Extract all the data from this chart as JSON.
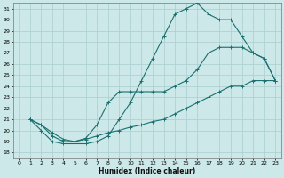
{
  "xlabel": "Humidex (Indice chaleur)",
  "bg_color": "#cce8e8",
  "line_color": "#1a7070",
  "grid_color": "#aacece",
  "xlim": [
    -0.5,
    23.5
  ],
  "ylim": [
    17.5,
    31.5
  ],
  "xticks": [
    0,
    1,
    2,
    3,
    4,
    5,
    6,
    7,
    8,
    9,
    10,
    11,
    12,
    13,
    14,
    15,
    16,
    17,
    18,
    19,
    20,
    21,
    22,
    23
  ],
  "yticks": [
    18,
    19,
    20,
    21,
    22,
    23,
    24,
    25,
    26,
    27,
    28,
    29,
    30,
    31
  ],
  "line1": {
    "x": [
      1,
      2,
      3,
      4,
      5,
      6,
      7,
      8,
      9,
      10,
      11,
      12,
      13,
      14,
      15,
      16,
      17,
      18,
      19,
      20,
      21,
      22,
      23
    ],
    "y": [
      21,
      20,
      19,
      18.8,
      18.8,
      18.8,
      19,
      19.5,
      21,
      22.5,
      24.5,
      26.5,
      28.5,
      30.5,
      31.0,
      31.5,
      30.5,
      30.0,
      30.0,
      28.5,
      27.0,
      26.5,
      24.5
    ]
  },
  "line2": {
    "x": [
      1,
      2,
      3,
      4,
      5,
      6,
      7,
      8,
      9,
      10,
      11,
      12,
      13,
      14,
      15,
      16,
      17,
      18,
      19,
      20,
      21,
      22,
      23
    ],
    "y": [
      21,
      20.5,
      19.5,
      19.0,
      19.0,
      19.3,
      20.5,
      22.5,
      23.5,
      23.5,
      23.5,
      23.5,
      23.5,
      24.0,
      24.5,
      25.5,
      27.0,
      27.5,
      27.5,
      27.5,
      27.0,
      26.5,
      24.5
    ]
  },
  "line3": {
    "x": [
      1,
      2,
      3,
      4,
      5,
      6,
      7,
      8,
      9,
      10,
      11,
      12,
      13,
      14,
      15,
      16,
      17,
      18,
      19,
      20,
      21,
      22,
      23
    ],
    "y": [
      21,
      20.5,
      19.8,
      19.2,
      19.0,
      19.2,
      19.5,
      19.8,
      20.0,
      20.3,
      20.5,
      20.8,
      21.0,
      21.5,
      22.0,
      22.5,
      23.0,
      23.5,
      24.0,
      24.0,
      24.5,
      24.5,
      24.5
    ]
  }
}
